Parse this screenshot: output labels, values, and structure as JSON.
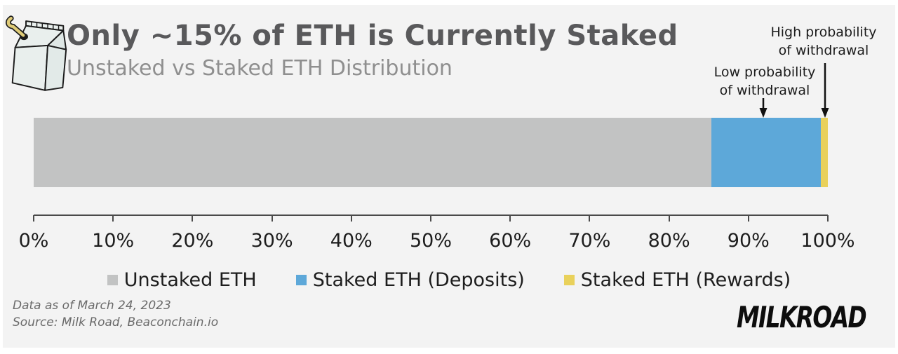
{
  "chart_data": {
    "type": "bar",
    "orientation": "horizontal-stacked",
    "title": "Only ~15% of ETH is Currently Staked",
    "subtitle": "Unstaked vs Staked ETH Distribution",
    "xlim": [
      0,
      100
    ],
    "x_ticks": [
      "0%",
      "10%",
      "20%",
      "30%",
      "40%",
      "50%",
      "60%",
      "70%",
      "80%",
      "90%",
      "100%"
    ],
    "grid": false,
    "legend_position": "bottom",
    "series": [
      {
        "name": "Unstaked ETH",
        "value": 85.3,
        "color": "#c2c3c3"
      },
      {
        "name": "Staked ETH (Deposits)",
        "value": 13.8,
        "color": "#5da8d9"
      },
      {
        "name": "Staked ETH (Rewards)",
        "value": 0.9,
        "color": "#e9d15b"
      }
    ],
    "annotations": [
      {
        "text": "High probability\nof withdrawal",
        "points_to": "Staked ETH (Rewards)"
      },
      {
        "text": "Low probability\nof withdrawal",
        "points_to": "Staked ETH (Deposits)"
      }
    ]
  },
  "annotations": {
    "high": "High probability\nof withdrawal",
    "low": "Low probability\nof withdrawal"
  },
  "footer": {
    "line1": "Data as of March 24, 2023",
    "line2": "Source: Milk Road, Beaconchain.io",
    "brand": "MILKROAD"
  },
  "logo": {
    "name": "milk-carton-logo"
  },
  "colors": {
    "panel_background": "#f3f3f3",
    "title": "#59595b",
    "subtitle": "#8f8f8f",
    "axis": "#4a4a4a",
    "annotation_text": "#1b1b1b",
    "footer_text": "#6a6a6a",
    "brand_text": "#0d0d0d"
  }
}
